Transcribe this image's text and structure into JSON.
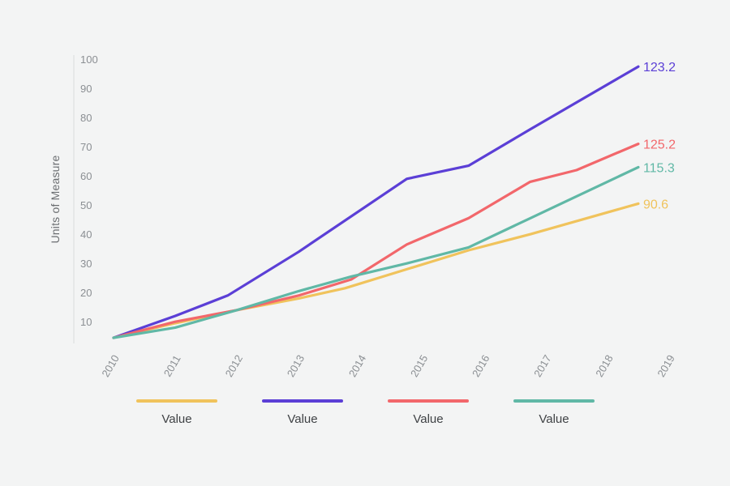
{
  "chart_data": {
    "type": "line",
    "ylabel": "Units of Measure",
    "xlabel": "",
    "y_ticks": [
      10,
      20,
      30,
      40,
      50,
      60,
      70,
      80,
      90,
      100
    ],
    "x_ticks": [
      "2010",
      "2011",
      "2012",
      "2013",
      "2014",
      "2015",
      "2016",
      "2017",
      "2018",
      "2019"
    ],
    "ylim": [
      2,
      102
    ],
    "xlim": [
      2010,
      2019
    ],
    "grid": false,
    "legend_position": "bottom",
    "series": [
      {
        "name": "Value",
        "color": "#f0c35c",
        "end_label": "90.6",
        "points": [
          [
            2010.0,
            4.5
          ],
          [
            2011.0,
            9.5
          ],
          [
            2012.0,
            14.0
          ],
          [
            2013.0,
            18.0
          ],
          [
            2013.75,
            21.5
          ],
          [
            2014.75,
            28.0
          ],
          [
            2015.75,
            34.5
          ],
          [
            2016.75,
            40.0
          ],
          [
            2018.5,
            50.5
          ]
        ]
      },
      {
        "name": "Value",
        "color": "#5b3fd6",
        "end_label": "123.2",
        "points": [
          [
            2010.0,
            4.5
          ],
          [
            2011.0,
            12.0
          ],
          [
            2011.85,
            19.0
          ],
          [
            2013.0,
            34.0
          ],
          [
            2014.75,
            59.0
          ],
          [
            2015.75,
            63.5
          ],
          [
            2016.75,
            76.0
          ],
          [
            2018.5,
            97.5
          ]
        ]
      },
      {
        "name": "Value",
        "color": "#f2676b",
        "end_label": "125.2",
        "points": [
          [
            2010.0,
            4.5
          ],
          [
            2011.0,
            10.0
          ],
          [
            2012.0,
            14.0
          ],
          [
            2013.0,
            19.0
          ],
          [
            2013.85,
            24.5
          ],
          [
            2014.75,
            36.5
          ],
          [
            2015.75,
            45.5
          ],
          [
            2016.75,
            58.0
          ],
          [
            2017.5,
            62.0
          ],
          [
            2018.5,
            71.0
          ]
        ]
      },
      {
        "name": "Value",
        "color": "#60b8a6",
        "end_label": "115.3",
        "points": [
          [
            2010.0,
            4.5
          ],
          [
            2011.0,
            8.0
          ],
          [
            2012.0,
            14.0
          ],
          [
            2013.0,
            20.5
          ],
          [
            2013.85,
            25.5
          ],
          [
            2014.75,
            30.0
          ],
          [
            2015.75,
            35.5
          ],
          [
            2016.75,
            45.5
          ],
          [
            2018.5,
            63.0
          ]
        ]
      }
    ]
  }
}
